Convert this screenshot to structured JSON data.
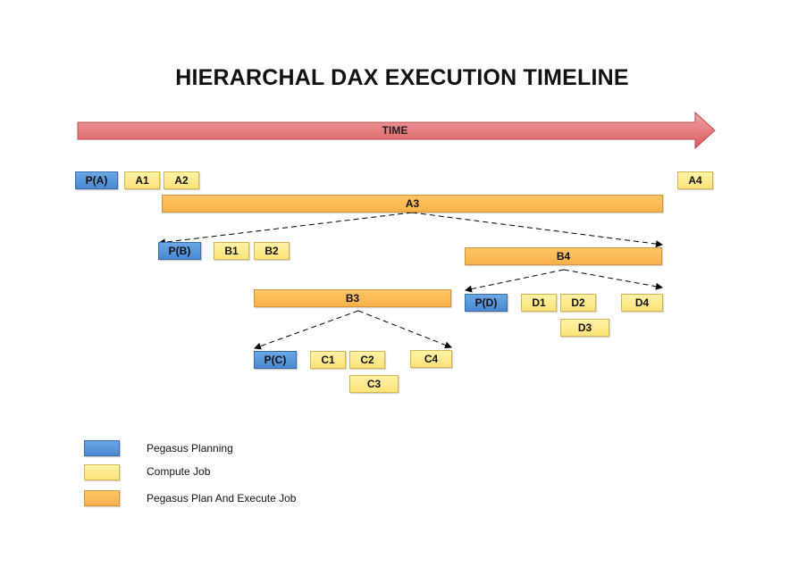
{
  "title": "HIERARCHAL DAX EXECUTION TIMELINE",
  "time_arrow_label": "TIME",
  "colors": {
    "planning": "#5a97dd",
    "compute": "#fde98c",
    "plan_execute": "#f9bb58",
    "time_arrow": "#e06b6e"
  },
  "nodes": {
    "pa": "P(A)",
    "a1": "A1",
    "a2": "A2",
    "a3": "A3",
    "a4": "A4",
    "pb": "P(B)",
    "b1": "B1",
    "b2": "B2",
    "b3": "B3",
    "b4": "B4",
    "pc": "P(C)",
    "c1": "C1",
    "c2": "C2",
    "c3": "C3",
    "c4": "C4",
    "pd": "P(D)",
    "d1": "D1",
    "d2": "D2",
    "d3": "D3",
    "d4": "D4"
  },
  "legend": {
    "planning": "Pegasus Planning",
    "compute": "Compute Job",
    "plan_execute": "Pegasus Plan And Execute Job"
  }
}
